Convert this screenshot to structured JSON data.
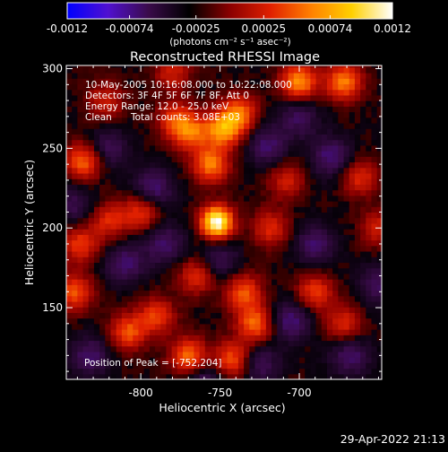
{
  "chart_data": {
    "type": "heatmap",
    "title": "Reconstructed RHESSI Image",
    "xlabel": "Heliocentric X (arcsec)",
    "ylabel": "Heliocentric Y (arcsec)",
    "xlim": [
      -847,
      -648
    ],
    "ylim": [
      105,
      302
    ],
    "x_ticks": [
      -800,
      -750,
      -700
    ],
    "y_ticks": [
      150,
      200,
      250,
      300
    ],
    "colorbar": {
      "range": [
        -0.0012,
        0.0012
      ],
      "tick_values": [
        -0.0012,
        -0.00074,
        -0.00025,
        0.00025,
        0.00074,
        0.0012
      ],
      "tick_labels": [
        "-0.0012",
        "-0.00074",
        "-0.00025",
        "0.00025",
        "0.00074",
        "0.0012"
      ],
      "label": "(photons cm⁻² s⁻¹ asec⁻²)"
    },
    "colormap_stops": [
      "#0000ff",
      "#5010d0",
      "#3a0b4a",
      "#000000",
      "#8a0000",
      "#e02000",
      "#ff8000",
      "#ffd000",
      "#ffffff"
    ],
    "annotations": {
      "line1": "10-May-2005 10:16:08.000 to 10:22:08.000",
      "line2": "Detectors: 3F 4F 5F 6F 7F 8F, Att 0",
      "line3": "Energy Range: 12.0 - 25.0 keV",
      "line4_a": "Clean",
      "line4_b": "Total counts: 3.08E+03",
      "peak": "Position of Peak = [-752,204]"
    },
    "peak_position": [
      -752,
      204
    ],
    "hot_spots": [
      {
        "x": -752,
        "y": 204,
        "intensity": 1.0
      },
      {
        "x": -756,
        "y": 240,
        "intensity": 0.55
      },
      {
        "x": -748,
        "y": 262,
        "intensity": 0.6
      },
      {
        "x": -768,
        "y": 260,
        "intensity": 0.45
      },
      {
        "x": -738,
        "y": 272,
        "intensity": 0.5
      },
      {
        "x": -700,
        "y": 292,
        "intensity": 0.6
      },
      {
        "x": -672,
        "y": 292,
        "intensity": 0.55
      },
      {
        "x": -778,
        "y": 268,
        "intensity": 0.4
      },
      {
        "x": -836,
        "y": 242,
        "intensity": 0.5
      },
      {
        "x": -838,
        "y": 190,
        "intensity": 0.4
      },
      {
        "x": -842,
        "y": 160,
        "intensity": 0.45
      },
      {
        "x": -800,
        "y": 210,
        "intensity": 0.4
      },
      {
        "x": -820,
        "y": 205,
        "intensity": 0.35
      },
      {
        "x": -808,
        "y": 135,
        "intensity": 0.45
      },
      {
        "x": -790,
        "y": 145,
        "intensity": 0.4
      },
      {
        "x": -770,
        "y": 120,
        "intensity": 0.5
      },
      {
        "x": -742,
        "y": 118,
        "intensity": 0.45
      },
      {
        "x": -728,
        "y": 140,
        "intensity": 0.5
      },
      {
        "x": -735,
        "y": 160,
        "intensity": 0.45
      },
      {
        "x": -690,
        "y": 160,
        "intensity": 0.4
      },
      {
        "x": -672,
        "y": 140,
        "intensity": 0.35
      },
      {
        "x": -662,
        "y": 232,
        "intensity": 0.35
      },
      {
        "x": -718,
        "y": 200,
        "intensity": 0.35
      },
      {
        "x": -708,
        "y": 230,
        "intensity": 0.3
      },
      {
        "x": -765,
        "y": 170,
        "intensity": 0.35
      },
      {
        "x": -822,
        "y": 280,
        "intensity": 0.3
      },
      {
        "x": -650,
        "y": 200,
        "intensity": 0.3
      },
      {
        "x": -780,
        "y": 298,
        "intensity": 0.3
      }
    ],
    "cold_spots": [
      {
        "x": -760,
        "y": 100,
        "intensity": 0.6
      },
      {
        "x": -832,
        "y": 120,
        "intensity": 0.5
      },
      {
        "x": -792,
        "y": 225,
        "intensity": 0.55
      },
      {
        "x": -810,
        "y": 178,
        "intensity": 0.5
      },
      {
        "x": -785,
        "y": 190,
        "intensity": 0.5
      },
      {
        "x": -705,
        "y": 142,
        "intensity": 0.55
      },
      {
        "x": -690,
        "y": 190,
        "intensity": 0.5
      },
      {
        "x": -680,
        "y": 245,
        "intensity": 0.55
      },
      {
        "x": -720,
        "y": 252,
        "intensity": 0.5
      },
      {
        "x": -668,
        "y": 120,
        "intensity": 0.5
      },
      {
        "x": -820,
        "y": 250,
        "intensity": 0.45
      },
      {
        "x": -750,
        "y": 180,
        "intensity": 0.4
      },
      {
        "x": -700,
        "y": 270,
        "intensity": 0.45
      },
      {
        "x": -650,
        "y": 165,
        "intensity": 0.45
      },
      {
        "x": -842,
        "y": 215,
        "intensity": 0.4
      },
      {
        "x": -725,
        "y": 115,
        "intensity": 0.45
      }
    ]
  },
  "footer": {
    "date": "29-Apr-2022 21:13"
  }
}
